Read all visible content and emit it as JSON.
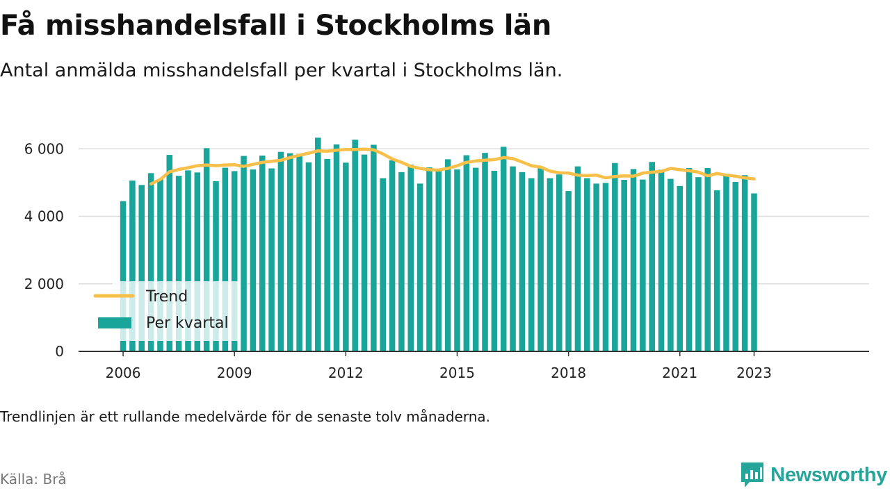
{
  "header": {
    "title": "Få misshandelsfall i Stockholms län",
    "subtitle": "Antal anmälda misshandelsfall per kvartal i Stockholms län."
  },
  "footer": {
    "note": "Trendlinjen är ett rullande medelvärde för de senaste tolv månaderna.",
    "source": "Källa: Brå",
    "brand": "Newsworthy",
    "brand_icon": "newsworthy-logo-icon"
  },
  "colors": {
    "bar": "#1aa59a",
    "trend": "#f7c04a",
    "grid": "#dddddd",
    "axis": "#333333",
    "brand": "#26a69a"
  },
  "chart_data": {
    "type": "bar",
    "x_start": 2006.0,
    "x_step": 0.25,
    "xlim": [
      2004.8,
      2026.1
    ],
    "ylim": [
      0,
      6500
    ],
    "y_ticks": [
      0,
      2000,
      4000,
      6000
    ],
    "y_tick_labels": [
      "0",
      "2 000",
      "4 000",
      "6 000"
    ],
    "x_ticks": [
      2006,
      2009,
      2012,
      2015,
      2018,
      2021,
      2023
    ],
    "x_tick_labels": [
      "2006",
      "2009",
      "2012",
      "2015",
      "2018",
      "2021",
      "2023"
    ],
    "grid": "horizontal",
    "legend": "bottom-left",
    "series": [
      {
        "name": "Per kvartal",
        "type": "bar",
        "values": [
          4450,
          5060,
          4930,
          5280,
          5100,
          5820,
          5200,
          5360,
          5300,
          6020,
          5040,
          5440,
          5340,
          5790,
          5390,
          5800,
          5420,
          5910,
          5870,
          5850,
          5600,
          6330,
          5700,
          6130,
          5590,
          6270,
          5830,
          6120,
          5130,
          5660,
          5310,
          5530,
          4970,
          5450,
          5410,
          5690,
          5390,
          5810,
          5440,
          5880,
          5350,
          6060,
          5480,
          5310,
          5130,
          5480,
          5130,
          5240,
          4750,
          5480,
          5130,
          4970,
          4990,
          5580,
          5080,
          5400,
          5090,
          5610,
          5380,
          5110,
          4900,
          5430,
          5160,
          5430,
          4770,
          5260,
          5020,
          5220,
          4680
        ]
      },
      {
        "name": "Trend",
        "type": "line",
        "x": [
          2006.75,
          2007,
          2007.25,
          2007.5,
          2007.75,
          2008,
          2008.25,
          2008.5,
          2008.75,
          2009,
          2009.25,
          2009.5,
          2009.75,
          2010,
          2010.25,
          2010.5,
          2010.75,
          2011,
          2011.25,
          2011.5,
          2011.75,
          2012,
          2012.25,
          2012.5,
          2012.75,
          2013,
          2013.25,
          2013.5,
          2013.75,
          2014,
          2014.25,
          2014.5,
          2014.75,
          2015,
          2015.25,
          2015.5,
          2015.75,
          2016,
          2016.25,
          2016.5,
          2016.75,
          2017,
          2017.25,
          2017.5,
          2017.75,
          2018,
          2018.25,
          2018.5,
          2018.75,
          2019,
          2019.25,
          2019.5,
          2019.75,
          2020,
          2020.25,
          2020.5,
          2020.75,
          2021,
          2021.25,
          2021.5,
          2021.75,
          2022,
          2022.25,
          2022.5,
          2022.75,
          2023
        ],
        "values": [
          4960,
          5090,
          5320,
          5390,
          5440,
          5500,
          5520,
          5500,
          5520,
          5530,
          5480,
          5540,
          5600,
          5630,
          5660,
          5740,
          5810,
          5870,
          5940,
          5930,
          5960,
          5980,
          5980,
          5990,
          5970,
          5850,
          5700,
          5600,
          5480,
          5420,
          5380,
          5370,
          5420,
          5500,
          5600,
          5640,
          5660,
          5680,
          5740,
          5710,
          5610,
          5500,
          5460,
          5340,
          5290,
          5280,
          5220,
          5210,
          5220,
          5140,
          5180,
          5200,
          5190,
          5280,
          5310,
          5330,
          5420,
          5380,
          5350,
          5310,
          5200,
          5270,
          5220,
          5190,
          5140,
          5110
        ]
      }
    ]
  }
}
